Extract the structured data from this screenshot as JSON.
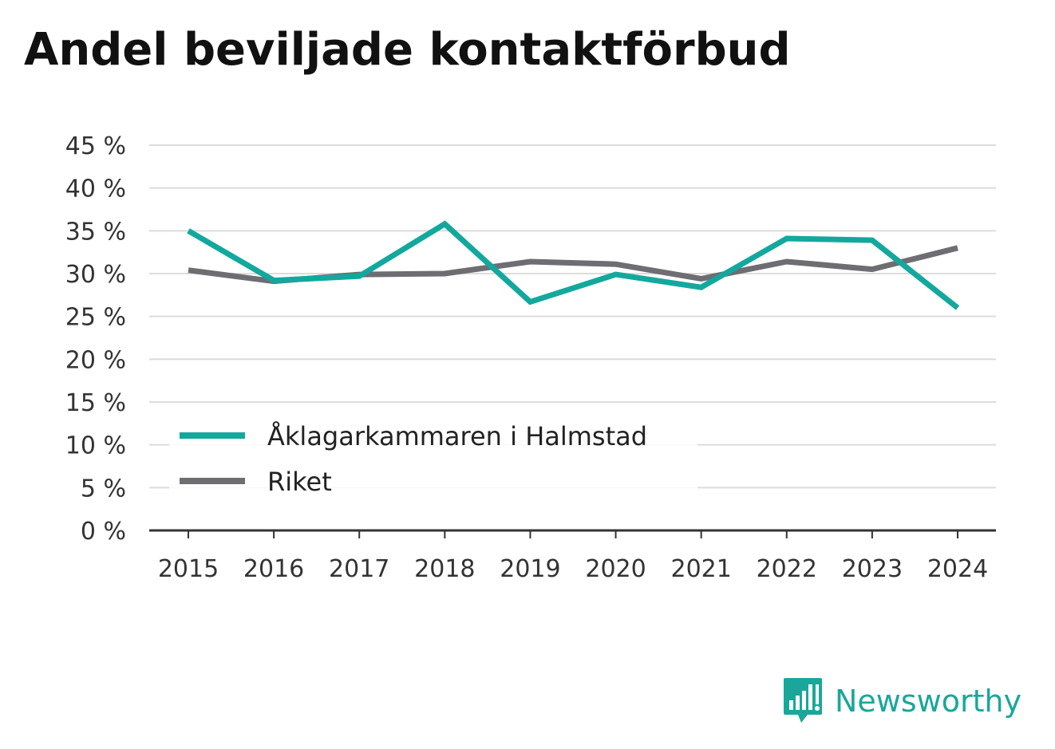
{
  "title": "Andel beviljade kontaktförbud",
  "brand": {
    "name": "Newsworthy",
    "icon": "newsworthy-logo-icon",
    "color": "#1aa79a"
  },
  "chart_data": {
    "type": "line",
    "categories": [
      "2015",
      "2016",
      "2017",
      "2018",
      "2019",
      "2020",
      "2021",
      "2022",
      "2023",
      "2024"
    ],
    "series": [
      {
        "name": "Åklagarkammaren i Halmstad",
        "color": "#13a89e",
        "values": [
          35.0,
          29.2,
          29.7,
          35.8,
          26.7,
          29.9,
          28.4,
          34.1,
          33.9,
          26.0
        ]
      },
      {
        "name": "Riket",
        "color": "#6e6d72",
        "values": [
          30.4,
          29.1,
          29.9,
          30.0,
          31.4,
          31.1,
          29.4,
          31.4,
          30.5,
          33.0
        ]
      }
    ],
    "ylim": [
      0,
      45
    ],
    "yticks": [
      0,
      5,
      10,
      15,
      20,
      25,
      30,
      35,
      40,
      45
    ],
    "ytick_labels": [
      "0 %",
      "5 %",
      "10 %",
      "15 %",
      "20 %",
      "25 %",
      "30 %",
      "35 %",
      "40 %",
      "45 %"
    ],
    "legend_position": "bottom-left",
    "grid": true
  }
}
